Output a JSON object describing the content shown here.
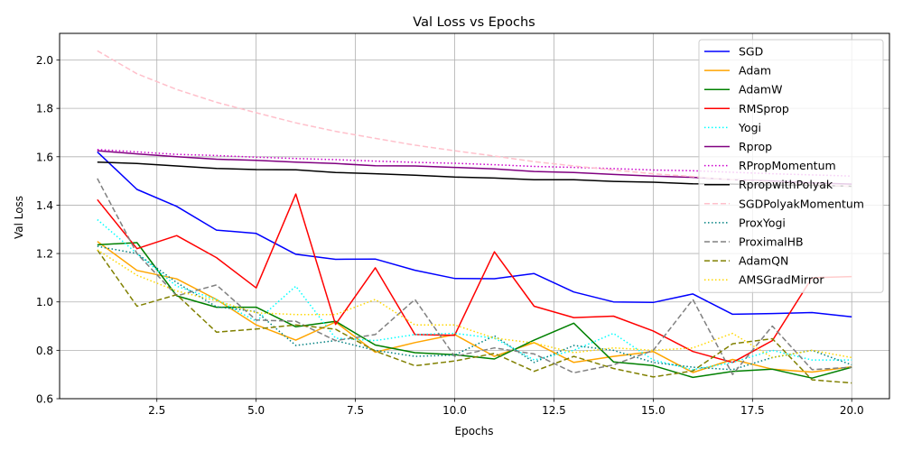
{
  "chart_data": {
    "type": "line",
    "title": "Val Loss vs Epochs",
    "xlabel": "Epochs",
    "ylabel": "Val Loss",
    "xlim": [
      0.05,
      20.95
    ],
    "ylim": [
      0.6,
      2.11
    ],
    "xticks": [
      2.5,
      5.0,
      7.5,
      10.0,
      12.5,
      15.0,
      17.5,
      20.0
    ],
    "xtick_labels": [
      "2.5",
      "5.0",
      "7.5",
      "10.0",
      "12.5",
      "15.0",
      "17.5",
      "20.0"
    ],
    "yticks": [
      0.6,
      0.8,
      1.0,
      1.2,
      1.4,
      1.6,
      1.8,
      2.0
    ],
    "ytick_labels": [
      "0.6",
      "0.8",
      "1.0",
      "1.2",
      "1.4",
      "1.6",
      "1.8",
      "2.0"
    ],
    "grid": true,
    "legend_position": "top-right",
    "x": [
      1,
      2,
      3,
      4,
      5,
      6,
      7,
      8,
      9,
      10,
      11,
      12,
      13,
      14,
      15,
      16,
      17,
      18,
      19,
      20
    ],
    "series": [
      {
        "name": "SGD",
        "color": "#0000ff",
        "dash": "solid",
        "values": [
          1.62,
          1.465,
          1.395,
          1.297,
          1.283,
          1.197,
          1.176,
          1.177,
          1.131,
          1.097,
          1.096,
          1.117,
          1.041,
          1.0,
          0.998,
          1.033,
          0.949,
          0.952,
          0.956,
          0.938
        ]
      },
      {
        "name": "Adam",
        "color": "#ffa500",
        "dash": "solid",
        "values": [
          1.25,
          1.13,
          1.095,
          1.01,
          0.905,
          0.842,
          0.917,
          0.792,
          0.832,
          0.865,
          0.775,
          0.832,
          0.75,
          0.775,
          0.795,
          0.708,
          0.762,
          0.722,
          0.71,
          0.732
        ]
      },
      {
        "name": "AdamW",
        "color": "#008000",
        "dash": "solid",
        "values": [
          1.236,
          1.245,
          1.025,
          0.978,
          0.978,
          0.897,
          0.92,
          0.822,
          0.79,
          0.782,
          0.764,
          0.842,
          0.912,
          0.752,
          0.737,
          0.688,
          0.713,
          0.722,
          0.685,
          0.73
        ]
      },
      {
        "name": "RMSprop",
        "color": "#ff0000",
        "dash": "solid",
        "values": [
          1.423,
          1.22,
          1.274,
          1.183,
          1.058,
          1.446,
          0.907,
          1.141,
          0.865,
          0.862,
          1.207,
          0.982,
          0.935,
          0.941,
          0.88,
          0.795,
          0.75,
          0.84,
          1.1,
          1.105
        ]
      },
      {
        "name": "Yogi",
        "color": "#00ffff",
        "dash": "dotted",
        "values": [
          1.34,
          1.2,
          1.065,
          1.01,
          0.92,
          1.065,
          0.85,
          0.84,
          0.865,
          0.87,
          0.85,
          0.76,
          0.8,
          0.87,
          0.76,
          0.72,
          0.75,
          0.8,
          0.76,
          0.76
        ]
      },
      {
        "name": "Rprop",
        "color": "#800080",
        "dash": "solid",
        "values": [
          1.625,
          1.612,
          1.6,
          1.59,
          1.585,
          1.578,
          1.572,
          1.563,
          1.562,
          1.556,
          1.55,
          1.539,
          1.535,
          1.527,
          1.52,
          1.515,
          1.505,
          1.5,
          1.492,
          1.487
        ]
      },
      {
        "name": "RPropMomentum",
        "color": "#cc00cc",
        "dash": "dotted",
        "values": [
          1.63,
          1.62,
          1.61,
          1.605,
          1.598,
          1.593,
          1.588,
          1.582,
          1.577,
          1.573,
          1.567,
          1.56,
          1.556,
          1.551,
          1.545,
          1.542,
          1.536,
          1.53,
          1.525,
          1.52
        ]
      },
      {
        "name": "RpropwithPolyak",
        "color": "#000000",
        "dash": "solid",
        "values": [
          1.578,
          1.572,
          1.562,
          1.552,
          1.547,
          1.546,
          1.535,
          1.53,
          1.524,
          1.516,
          1.512,
          1.505,
          1.505,
          1.498,
          1.495,
          1.488,
          1.487,
          1.483,
          1.482,
          1.478
        ]
      },
      {
        "name": "SGDPolyakMomentum",
        "color": "#ffc0cb",
        "dash": "dashed",
        "values": [
          2.038,
          1.943,
          1.878,
          1.825,
          1.782,
          1.74,
          1.705,
          1.676,
          1.648,
          1.625,
          1.603,
          1.58,
          1.562,
          1.545,
          1.53,
          1.518,
          1.505,
          1.495,
          1.485,
          1.478
        ]
      },
      {
        "name": "ProxYogi",
        "color": "#008080",
        "dash": "dotted",
        "values": [
          1.23,
          1.2,
          1.08,
          0.98,
          0.96,
          0.82,
          0.84,
          0.8,
          0.775,
          0.78,
          0.86,
          0.75,
          0.82,
          0.8,
          0.75,
          0.73,
          0.72,
          0.77,
          0.8,
          0.74
        ]
      },
      {
        "name": "ProximalHB",
        "color": "#808080",
        "dash": "dashed",
        "values": [
          1.51,
          1.2,
          1.025,
          1.07,
          0.925,
          0.92,
          0.84,
          0.865,
          1.01,
          0.775,
          0.81,
          0.785,
          0.707,
          0.74,
          0.8,
          1.01,
          0.7,
          0.9,
          0.72,
          0.73
        ]
      },
      {
        "name": "AdamQN",
        "color": "#808000",
        "dash": "dashed",
        "values": [
          1.215,
          0.982,
          1.03,
          0.875,
          0.888,
          0.905,
          0.887,
          0.797,
          0.736,
          0.756,
          0.787,
          0.713,
          0.775,
          0.725,
          0.69,
          0.715,
          0.827,
          0.848,
          0.678,
          0.665
        ]
      },
      {
        "name": "AMSGradMirror",
        "color": "#ffd700",
        "dash": "dotted",
        "values": [
          1.215,
          1.11,
          1.045,
          1.005,
          0.955,
          0.948,
          0.948,
          1.01,
          0.905,
          0.905,
          0.85,
          0.83,
          0.79,
          0.81,
          0.8,
          0.81,
          0.87,
          0.77,
          0.8,
          0.77
        ]
      }
    ]
  }
}
